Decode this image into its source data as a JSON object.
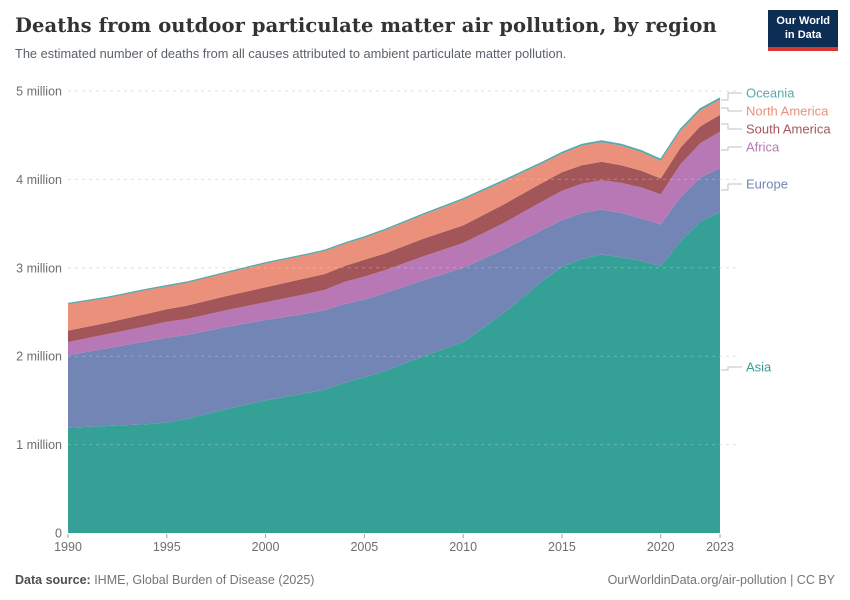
{
  "header": {
    "title": "Deaths from outdoor particulate matter air pollution, by region",
    "subtitle": "The estimated number of deaths from all causes attributed to ambient particulate matter pollution.",
    "logo": {
      "line1": "Our World",
      "line2": "in Data"
    }
  },
  "footer": {
    "source_label": "Data source:",
    "source_text": " IHME, Global Burden of Disease (2025)",
    "link_text": "OurWorldinData.org/air-pollution | CC BY"
  },
  "colors": {
    "logo_bg": "#0d2e54",
    "logo_bar": "#d93832",
    "gridline": "#d9d9d9",
    "gridline_overlay": "rgba(255,255,255,0.25)",
    "axis_text": "#6e6e6e",
    "tick": "#a0a0a0",
    "legend_connector": "#c2c2c2"
  },
  "chart_data": {
    "type": "area",
    "stacked": true,
    "title": "Deaths from outdoor particulate matter air pollution, by region",
    "unit": "deaths per year (millions)",
    "x_range": [
      1990,
      2023
    ],
    "y_max": 5,
    "grid": "dashed-horizontal",
    "legend_position": "right",
    "x": [
      1990,
      1992,
      1994,
      1995,
      1996,
      1998,
      2000,
      2002,
      2003,
      2004,
      2005,
      2006,
      2008,
      2010,
      2012,
      2014,
      2015,
      2016,
      2017,
      2018,
      2019,
      2020,
      2021,
      2022,
      2023
    ],
    "series": [
      {
        "name": "Asia",
        "color": "#34a096",
        "values": [
          1.19,
          1.21,
          1.23,
          1.25,
          1.29,
          1.4,
          1.5,
          1.58,
          1.62,
          1.7,
          1.76,
          1.83,
          2.0,
          2.16,
          2.48,
          2.85,
          3.01,
          3.1,
          3.15,
          3.12,
          3.08,
          3.02,
          3.3,
          3.52,
          3.63
        ]
      },
      {
        "name": "Europe",
        "color": "#7285b4",
        "values": [
          0.82,
          0.88,
          0.94,
          0.96,
          0.95,
          0.93,
          0.91,
          0.9,
          0.9,
          0.89,
          0.88,
          0.88,
          0.86,
          0.84,
          0.72,
          0.58,
          0.53,
          0.52,
          0.51,
          0.5,
          0.48,
          0.47,
          0.5,
          0.5,
          0.5
        ]
      },
      {
        "name": "Africa",
        "color": "#b878b6",
        "values": [
          0.15,
          0.16,
          0.17,
          0.18,
          0.18,
          0.19,
          0.2,
          0.22,
          0.23,
          0.25,
          0.26,
          0.26,
          0.27,
          0.28,
          0.3,
          0.32,
          0.33,
          0.33,
          0.33,
          0.34,
          0.35,
          0.34,
          0.37,
          0.39,
          0.41
        ]
      },
      {
        "name": "South America",
        "color": "#a35659",
        "values": [
          0.13,
          0.13,
          0.14,
          0.14,
          0.15,
          0.16,
          0.17,
          0.18,
          0.18,
          0.18,
          0.19,
          0.19,
          0.2,
          0.2,
          0.21,
          0.21,
          0.21,
          0.21,
          0.21,
          0.2,
          0.19,
          0.18,
          0.19,
          0.19,
          0.19
        ]
      },
      {
        "name": "North America",
        "color": "#ea907b",
        "values": [
          0.3,
          0.28,
          0.27,
          0.26,
          0.26,
          0.26,
          0.27,
          0.26,
          0.26,
          0.25,
          0.25,
          0.26,
          0.27,
          0.29,
          0.26,
          0.22,
          0.21,
          0.22,
          0.22,
          0.22,
          0.21,
          0.2,
          0.19,
          0.18,
          0.17
        ]
      },
      {
        "name": "Oceania",
        "color": "#58a9ad",
        "values": [
          0.006,
          0.006,
          0.007,
          0.007,
          0.007,
          0.008,
          0.008,
          0.009,
          0.009,
          0.009,
          0.01,
          0.01,
          0.011,
          0.012,
          0.013,
          0.014,
          0.014,
          0.015,
          0.015,
          0.016,
          0.016,
          0.016,
          0.018,
          0.019,
          0.02
        ]
      }
    ],
    "legend_top_to_bottom": [
      "Oceania",
      "North America",
      "South America",
      "Africa",
      "Europe",
      "Asia"
    ],
    "x_ticks": [
      1990,
      1995,
      2000,
      2005,
      2010,
      2015,
      2020,
      2023
    ],
    "y_ticks": [
      {
        "value": 0,
        "label": "0"
      },
      {
        "value": 1,
        "label": "1 million"
      },
      {
        "value": 2,
        "label": "2 million"
      },
      {
        "value": 3,
        "label": "3 million"
      },
      {
        "value": 4,
        "label": "4 million"
      },
      {
        "value": 5,
        "label": "5 million"
      }
    ]
  }
}
